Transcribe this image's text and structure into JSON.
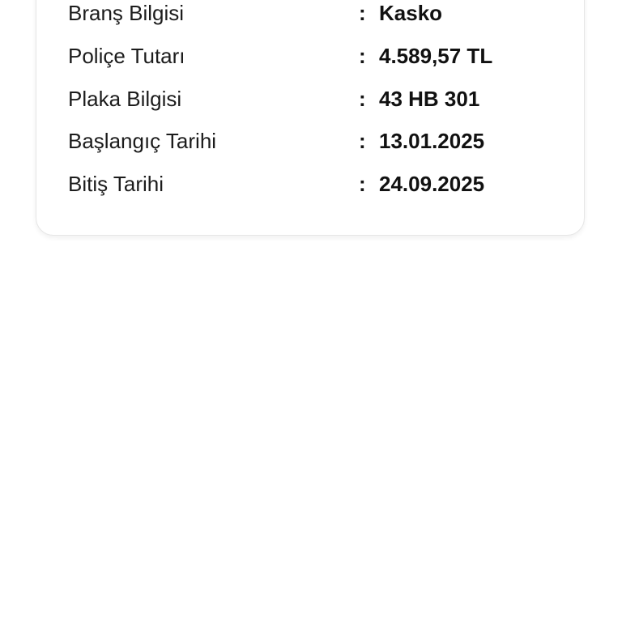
{
  "policy_details": {
    "rows": [
      {
        "label": "Branş Bilgisi",
        "separator": ":",
        "value": "Kasko"
      },
      {
        "label": "Poliçe Tutarı",
        "separator": ":",
        "value": "4.589,57 TL"
      },
      {
        "label": "Plaka Bilgisi",
        "separator": ":",
        "value": "43 HB 301"
      },
      {
        "label": "Başlangıç Tarihi",
        "separator": ":",
        "value": "13.01.2025"
      },
      {
        "label": "Bitiş Tarihi",
        "separator": ":",
        "value": "24.09.2025"
      }
    ]
  }
}
